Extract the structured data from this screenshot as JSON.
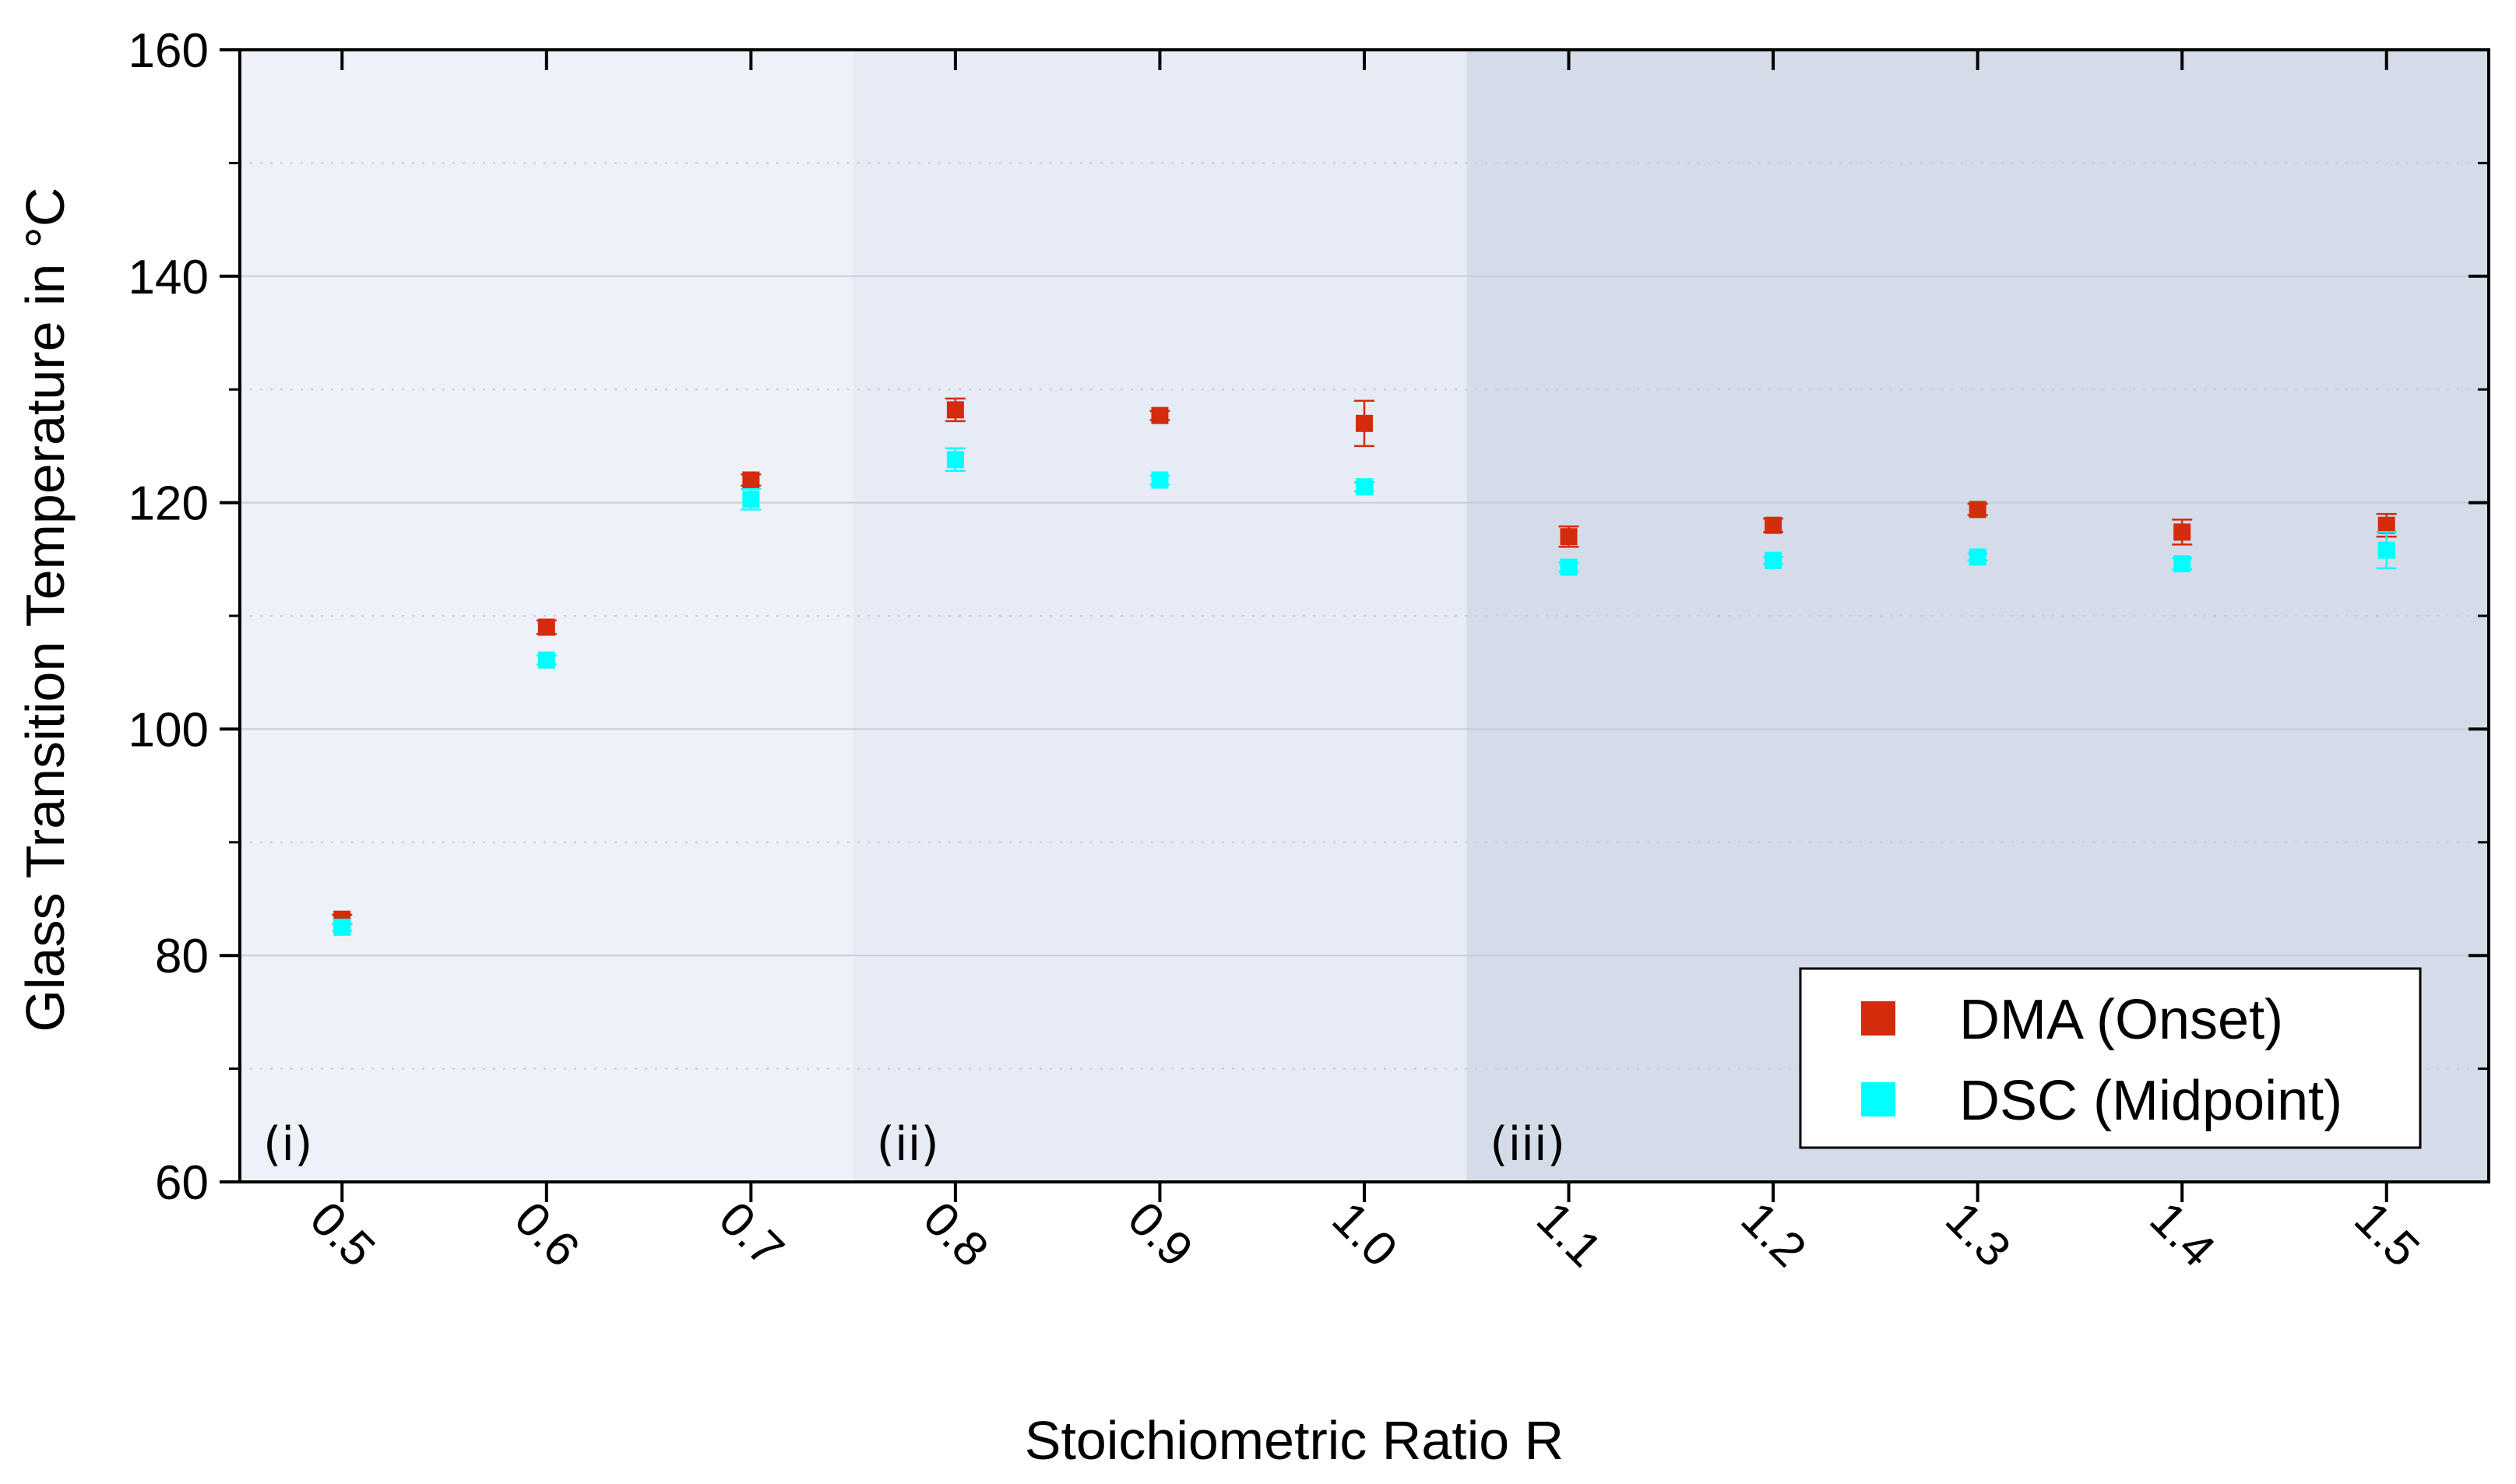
{
  "chart_data": {
    "type": "scatter",
    "xlabel": "Stoichiometric Ratio R",
    "ylabel": "Glass Transition Temperature in °C",
    "x": [
      0.5,
      0.6,
      0.7,
      0.8,
      0.9,
      1.0,
      1.1,
      1.2,
      1.3,
      1.4,
      1.5
    ],
    "x_tick_labels": [
      "0.5",
      "0.6",
      "0.7",
      "0.8",
      "0.9",
      "1.0",
      "1.1",
      "1.2",
      "1.3",
      "1.4",
      "1.5"
    ],
    "xlim": [
      0.45,
      1.55
    ],
    "ylim": [
      60,
      160
    ],
    "y_ticks": [
      60,
      80,
      100,
      120,
      140,
      160
    ],
    "y_tick_labels": [
      "60",
      "80",
      "100",
      "120",
      "140",
      "160"
    ],
    "grid": true,
    "legend_position": "bottom-right",
    "series": [
      {
        "name": "DMA (Onset)",
        "color": "#d42b0c",
        "values": [
          83.2,
          109.0,
          122.0,
          128.2,
          127.7,
          127.0,
          117.0,
          118.0,
          119.4,
          117.4,
          118.0
        ],
        "errors": [
          0.4,
          0.6,
          0.5,
          1.0,
          0.4,
          2.0,
          0.9,
          0.6,
          0.5,
          1.1,
          1.0
        ]
      },
      {
        "name": "DSC (Midpoint)",
        "color": "#00ffff",
        "values": [
          82.5,
          106.1,
          120.3,
          123.8,
          122.0,
          121.4,
          114.3,
          114.9,
          115.2,
          114.6,
          115.8
        ],
        "errors": [
          0.3,
          0.4,
          0.9,
          1.0,
          0.4,
          0.4,
          0.4,
          0.3,
          0.3,
          0.5,
          1.6
        ]
      }
    ],
    "regions": [
      {
        "label": "(i)",
        "x_range": [
          0.45,
          0.75
        ],
        "color": "#eef1f8"
      },
      {
        "label": "(ii)",
        "x_range": [
          0.75,
          1.05
        ],
        "color": "#e7ebf5"
      },
      {
        "label": "(iii)",
        "x_range": [
          1.05,
          1.55
        ],
        "color": "#d5dce9"
      }
    ]
  }
}
